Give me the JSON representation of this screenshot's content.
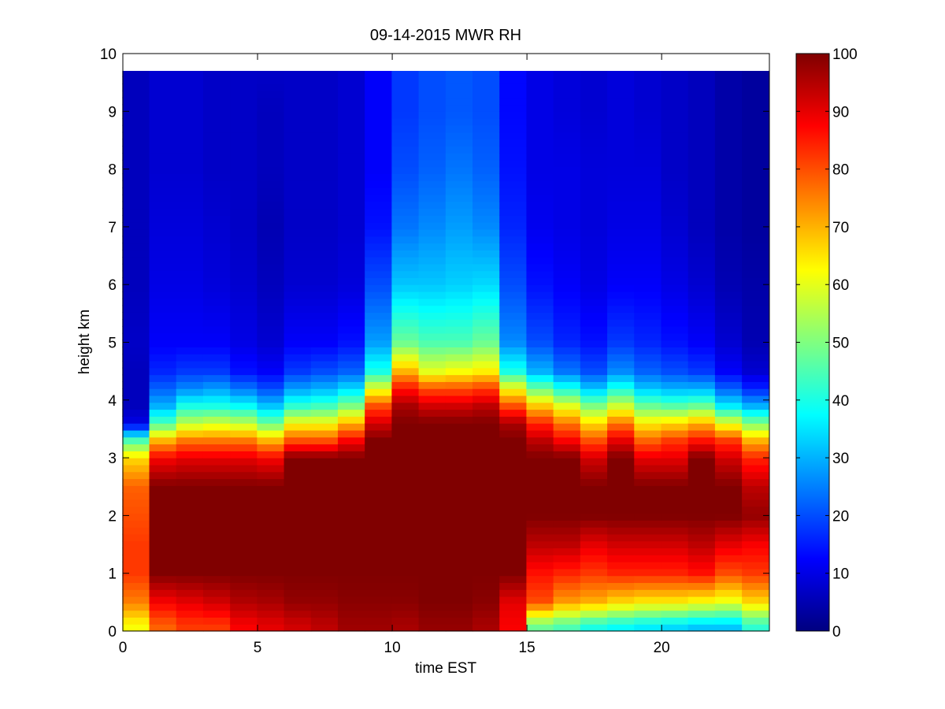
{
  "chart_data": {
    "type": "heatmap",
    "title": "09-14-2015 MWR RH",
    "xlabel": "time EST",
    "ylabel": "height km",
    "xlim": [
      0,
      24
    ],
    "ylim": [
      0,
      10
    ],
    "x_ticks": [
      "0",
      "5",
      "10",
      "15",
      "20"
    ],
    "y_ticks": [
      "0",
      "1",
      "2",
      "3",
      "4",
      "5",
      "6",
      "7",
      "8",
      "9",
      "10"
    ],
    "colorbar": {
      "colormap": "jet",
      "range": [
        0,
        100
      ],
      "ticks": [
        "0",
        "10",
        "20",
        "30",
        "40",
        "50",
        "60",
        "70",
        "80",
        "90",
        "100"
      ]
    },
    "x": [
      0,
      1,
      2,
      3,
      4,
      5,
      6,
      7,
      8,
      9,
      10,
      11,
      12,
      13,
      14,
      15,
      16,
      17,
      18,
      19,
      20,
      21,
      22,
      23
    ],
    "heights_km": [
      0.1,
      0.5,
      1.0,
      1.5,
      2.0,
      2.5,
      3.0,
      3.3,
      3.6,
      3.9,
      4.2,
      4.5,
      5.0,
      6.0,
      7.0,
      8.0,
      9.0,
      9.7
    ],
    "z": [
      [
        62,
        75,
        82,
        82,
        80,
        78,
        66,
        45,
        10,
        6,
        6,
        6,
        7,
        6,
        6,
        6,
        6,
        6
      ],
      [
        78,
        88,
        100,
        100,
        100,
        100,
        88,
        70,
        45,
        30,
        22,
        16,
        12,
        10,
        9,
        8,
        8,
        8
      ],
      [
        82,
        90,
        100,
        100,
        100,
        100,
        90,
        76,
        56,
        40,
        26,
        18,
        12,
        10,
        9,
        8,
        8,
        8
      ],
      [
        82,
        92,
        100,
        100,
        100,
        100,
        90,
        76,
        58,
        40,
        28,
        18,
        12,
        9,
        8,
        7,
        7,
        7
      ],
      [
        88,
        95,
        100,
        100,
        100,
        100,
        90,
        76,
        56,
        38,
        24,
        14,
        10,
        8,
        7,
        7,
        7,
        7
      ],
      [
        90,
        96,
        100,
        100,
        100,
        100,
        88,
        70,
        48,
        32,
        20,
        12,
        8,
        6,
        5,
        6,
        6,
        7
      ],
      [
        92,
        98,
        100,
        100,
        100,
        100,
        100,
        80,
        62,
        42,
        28,
        18,
        12,
        8,
        7,
        7,
        7,
        7
      ],
      [
        94,
        98,
        100,
        100,
        100,
        100,
        100,
        80,
        62,
        44,
        30,
        20,
        12,
        8,
        7,
        7,
        7,
        7
      ],
      [
        97,
        99,
        100,
        100,
        100,
        100,
        100,
        88,
        70,
        50,
        34,
        22,
        14,
        9,
        8,
        8,
        8,
        8
      ],
      [
        97,
        99,
        100,
        100,
        100,
        100,
        100,
        100,
        92,
        80,
        60,
        40,
        28,
        20,
        14,
        12,
        12,
        12
      ],
      [
        96,
        99,
        100,
        100,
        100,
        100,
        100,
        100,
        100,
        96,
        86,
        70,
        48,
        32,
        24,
        20,
        18,
        18
      ],
      [
        98,
        100,
        100,
        100,
        100,
        100,
        100,
        100,
        100,
        92,
        80,
        60,
        45,
        32,
        26,
        22,
        20,
        20
      ],
      [
        98,
        100,
        100,
        100,
        100,
        100,
        100,
        100,
        100,
        92,
        80,
        62,
        45,
        33,
        28,
        24,
        21,
        21
      ],
      [
        96,
        99,
        100,
        100,
        100,
        100,
        100,
        100,
        100,
        94,
        82,
        64,
        48,
        34,
        26,
        22,
        20,
        20
      ],
      [
        88,
        90,
        100,
        100,
        100,
        100,
        100,
        100,
        96,
        80,
        62,
        40,
        26,
        20,
        16,
        14,
        13,
        13
      ],
      [
        48,
        80,
        86,
        94,
        100,
        100,
        100,
        94,
        84,
        68,
        48,
        30,
        20,
        14,
        11,
        10,
        10,
        10
      ],
      [
        45,
        72,
        84,
        94,
        100,
        100,
        100,
        88,
        76,
        60,
        40,
        24,
        16,
        12,
        10,
        10,
        9,
        9
      ],
      [
        40,
        70,
        82,
        90,
        100,
        100,
        92,
        80,
        66,
        50,
        32,
        20,
        14,
        10,
        9,
        9,
        8,
        8
      ],
      [
        38,
        66,
        84,
        92,
        100,
        100,
        100,
        90,
        76,
        58,
        40,
        26,
        18,
        12,
        10,
        9,
        9,
        9
      ],
      [
        36,
        64,
        84,
        92,
        100,
        100,
        90,
        78,
        64,
        48,
        32,
        22,
        16,
        12,
        10,
        9,
        8,
        8
      ],
      [
        34,
        64,
        84,
        92,
        100,
        100,
        90,
        82,
        66,
        46,
        30,
        20,
        14,
        10,
        8,
        7,
        7,
        7
      ],
      [
        32,
        62,
        86,
        94,
        100,
        100,
        100,
        86,
        70,
        48,
        30,
        18,
        12,
        8,
        6,
        6,
        6,
        6
      ],
      [
        32,
        60,
        80,
        90,
        100,
        100,
        92,
        82,
        60,
        36,
        22,
        12,
        8,
        5,
        4,
        4,
        4,
        4
      ],
      [
        42,
        66,
        82,
        88,
        98,
        94,
        84,
        70,
        50,
        30,
        16,
        8,
        5,
        4,
        3,
        3,
        3,
        3
      ]
    ]
  }
}
